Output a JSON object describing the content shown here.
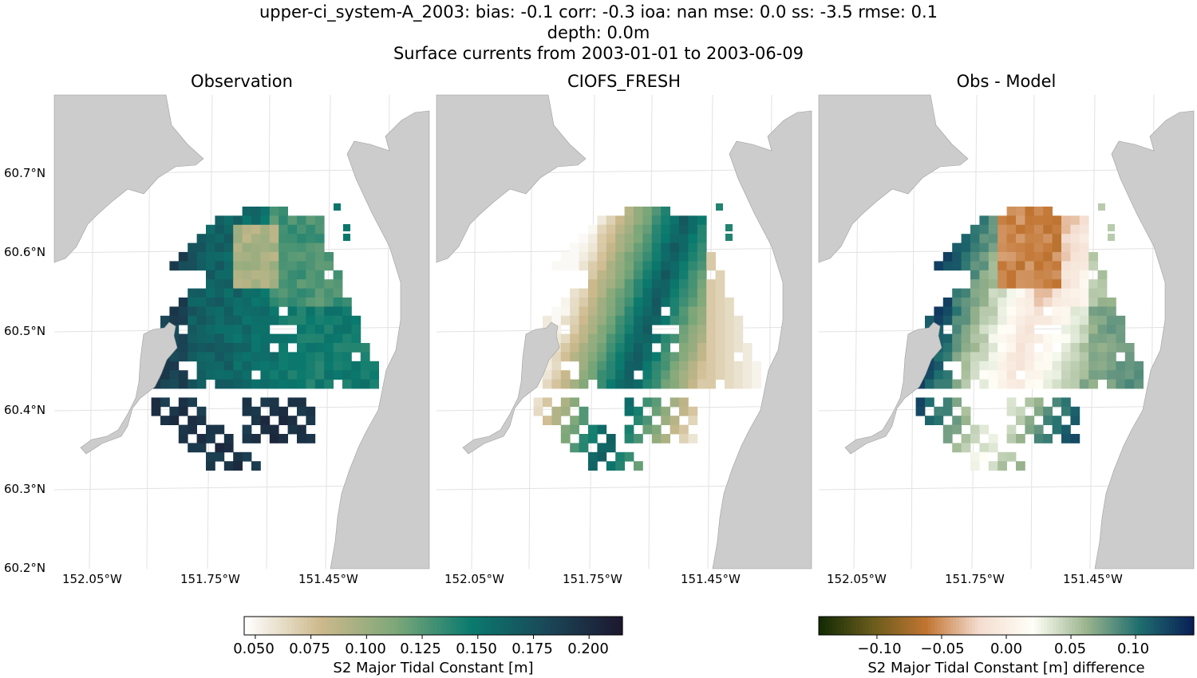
{
  "figure": {
    "title_line1": "upper-ci_system-A_2003: bias: -0.1  corr: -0.3  ioa: nan  mse: 0.0  ss: -3.5  rmse: 0.1",
    "title_line2": "depth: 0.0m",
    "title_line3": "Surface currents from 2003-01-01 to 2003-06-09"
  },
  "panels": [
    {
      "title": "Observation"
    },
    {
      "title": "CIOFS_FRESH"
    },
    {
      "title": "Obs - Model"
    }
  ],
  "colors": {
    "land": "#cccccc",
    "grid": "#e2e2e2",
    "coast": "#9e9e9e"
  },
  "chart_data": [
    {
      "type": "heatmap",
      "title": "Observation",
      "lon_ticks": [
        "152.05°W",
        "151.75°W",
        "151.45°W"
      ],
      "lat_ticks": [
        "60.7°N",
        "60.6°N",
        "60.5°N",
        "60.4°N",
        "60.3°N",
        "60.2°N"
      ],
      "lon_range": [
        -152.15,
        -151.2
      ],
      "lat_range": [
        60.2,
        60.8
      ],
      "variable": "S2 Major Tidal Constant [m]",
      "value_range": [
        0.045,
        0.215
      ],
      "summary": "High values (~0.20 m) in the west and south, ~0.15 m teal in center, ~0.08 m in a small patch north-center"
    },
    {
      "type": "heatmap",
      "title": "CIOFS_FRESH",
      "lon_ticks": [
        "152.05°W",
        "151.75°W",
        "151.45°W"
      ],
      "variable": "S2 Major Tidal Constant [m]",
      "value_range": [
        0.045,
        0.215
      ],
      "summary": "Low values (~0.05 m) in the west, rising to ~0.16 m in a diagonal central band, decreasing to ~0.07 m in the east"
    },
    {
      "type": "heatmap",
      "title": "Obs - Model",
      "lon_ticks": [
        "152.05°W",
        "151.75°W",
        "151.45°W"
      ],
      "variable": "S2 Major Tidal Constant [m] difference",
      "value_range": [
        -0.145,
        0.145
      ],
      "summary": "Positive (~0.12 m) in west and south, negative (~-0.06 m) north-center, near zero in the center"
    }
  ],
  "colorbars": [
    {
      "label": "S2 Major Tidal Constant [m]",
      "ticks": [
        "0.050",
        "0.075",
        "0.100",
        "0.125",
        "0.150",
        "0.175",
        "0.200"
      ],
      "tick_values": [
        0.05,
        0.075,
        0.1,
        0.125,
        0.15,
        0.175,
        0.2
      ],
      "range": [
        0.045,
        0.215
      ],
      "stops": [
        "#ffffff",
        "#cdb98c",
        "#7da779",
        "#0a7a6e",
        "#1a4858",
        "#1d1830"
      ]
    },
    {
      "label": "S2 Major Tidal Constant [m] difference",
      "ticks": [
        "−0.10",
        "−0.05",
        "0.00",
        "0.05",
        "0.10"
      ],
      "tick_values": [
        -0.1,
        -0.05,
        0.0,
        0.05,
        0.1
      ],
      "range": [
        -0.145,
        0.145
      ],
      "stops": [
        "#142b05",
        "#6a5c1c",
        "#c27532",
        "#f4ddd0",
        "#fffff7",
        "#9bb58e",
        "#1f6e6e",
        "#0a2058"
      ]
    }
  ]
}
